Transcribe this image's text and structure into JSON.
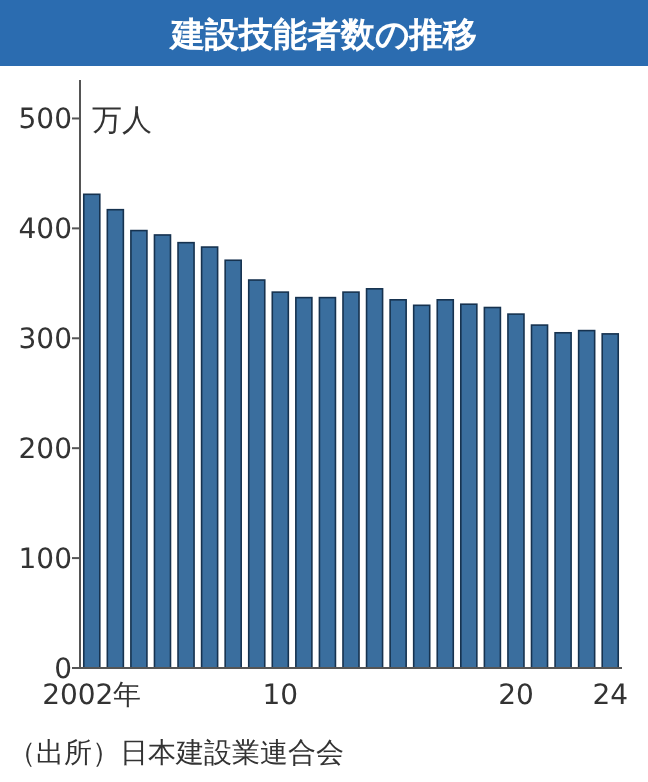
{
  "chart_data": {
    "type": "bar",
    "title": "建設技能者数の推移",
    "ylabel": "万人",
    "categories": [
      "2002年",
      null,
      null,
      null,
      null,
      null,
      null,
      null,
      "10",
      null,
      null,
      null,
      null,
      null,
      null,
      null,
      null,
      null,
      "20",
      null,
      null,
      null,
      "24"
    ],
    "values": [
      431,
      417,
      398,
      394,
      387,
      383,
      371,
      353,
      342,
      337,
      337,
      342,
      345,
      335,
      330,
      335,
      331,
      328,
      322,
      312,
      305,
      307,
      304
    ],
    "color": "#3a6e9e",
    "ylim": [
      0,
      535
    ],
    "yticks": [
      0,
      100,
      200,
      300,
      400,
      500
    ],
    "annotations": [
      "（出所）日本建設業連合会"
    ]
  }
}
